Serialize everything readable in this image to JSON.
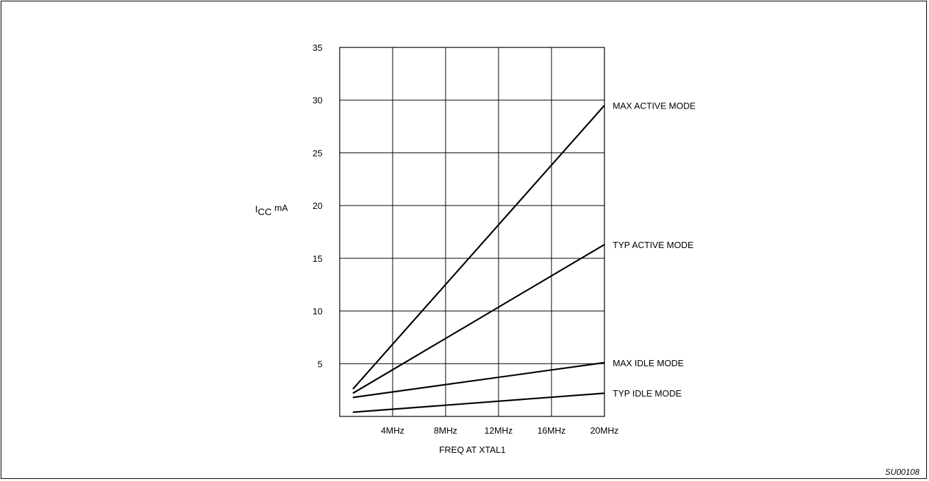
{
  "chart_data": {
    "type": "line",
    "title": "",
    "xlabel": "FREQ AT XTAL1",
    "ylabel_main": "I",
    "ylabel_sub": "CC",
    "ylabel_unit": "mA",
    "x_tick_labels": [
      "4MHz",
      "8MHz",
      "12MHz",
      "16MHz",
      "20MHz"
    ],
    "x_ticks": [
      4,
      8,
      12,
      16,
      20
    ],
    "xlim": [
      0,
      20
    ],
    "y_tick_labels": [
      "5",
      "10",
      "15",
      "20",
      "25",
      "30",
      "35"
    ],
    "y_ticks": [
      5,
      10,
      15,
      20,
      25,
      30,
      35
    ],
    "ylim": [
      0,
      35
    ],
    "grid": true,
    "series": [
      {
        "name": "MAX ACTIVE MODE",
        "x": [
          1,
          20
        ],
        "y": [
          2.6,
          29.5
        ]
      },
      {
        "name": "TYP ACTIVE MODE",
        "x": [
          1,
          20
        ],
        "y": [
          2.2,
          16.3
        ]
      },
      {
        "name": "MAX IDLE MODE",
        "x": [
          1,
          20
        ],
        "y": [
          1.8,
          5.1
        ]
      },
      {
        "name": "TYP IDLE MODE",
        "x": [
          1,
          20
        ],
        "y": [
          0.4,
          2.2
        ]
      }
    ]
  },
  "figure_code": "SU00108",
  "colors": {
    "line": "#000000",
    "grid": "#000000",
    "background": "#ffffff"
  }
}
